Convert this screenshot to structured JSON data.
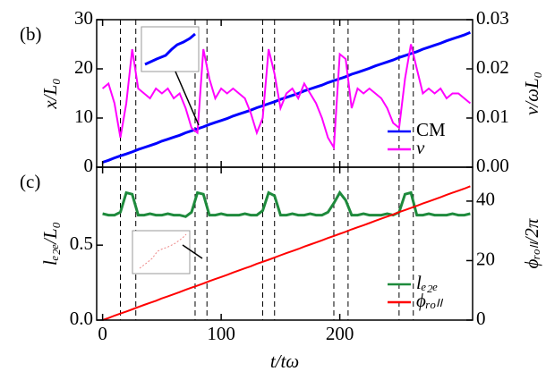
{
  "chart_data": [
    {
      "type": "line",
      "panel_label": "(b)",
      "x": [
        0,
        5,
        10,
        15,
        20,
        25,
        30,
        35,
        40,
        45,
        50,
        55,
        60,
        65,
        70,
        75,
        80,
        85,
        90,
        95,
        100,
        105,
        110,
        115,
        120,
        125,
        130,
        135,
        140,
        145,
        150,
        155,
        160,
        165,
        170,
        175,
        180,
        185,
        190,
        195,
        200,
        205,
        210,
        215,
        220,
        225,
        230,
        235,
        240,
        245,
        250,
        255,
        260,
        265,
        270,
        275,
        280,
        285,
        290,
        295,
        300,
        305,
        310
      ],
      "xlim": [
        -5,
        312
      ],
      "xticks": [
        0,
        100,
        200
      ],
      "ylim": [
        0,
        30
      ],
      "yticks": [
        0,
        10,
        20,
        30
      ],
      "ylabel": "x/L₀",
      "y2lim": [
        0,
        0.03
      ],
      "y2ticks": [
        {
          "value": 0,
          "label": "0.00"
        },
        {
          "value": 0.01,
          "label": "0.01"
        },
        {
          "value": 0.02,
          "label": "0.02"
        },
        {
          "value": 0.03,
          "label": "0.03"
        }
      ],
      "y2label": "v/ωL₀",
      "legend": "lower right",
      "vlines": [
        15,
        28,
        78,
        88,
        135,
        145,
        195,
        207,
        250,
        262
      ],
      "series": [
        {
          "name": "CM",
          "color": "#0000ff",
          "values": [
            1.0,
            1.4,
            1.9,
            2.3,
            2.7,
            3.1,
            3.6,
            4.0,
            4.4,
            4.8,
            5.3,
            5.7,
            6.1,
            6.5,
            7.0,
            7.4,
            7.8,
            8.2,
            8.7,
            9.1,
            9.5,
            9.9,
            10.4,
            10.8,
            11.2,
            11.6,
            12.1,
            12.5,
            12.9,
            13.3,
            13.8,
            14.2,
            14.6,
            15.0,
            15.5,
            15.9,
            16.3,
            16.7,
            17.2,
            17.6,
            18.0,
            18.4,
            18.9,
            19.3,
            19.7,
            20.1,
            20.6,
            21.0,
            21.4,
            21.8,
            22.3,
            22.7,
            23.1,
            23.5,
            24.0,
            24.4,
            24.8,
            25.2,
            25.7,
            26.1,
            26.5,
            26.9,
            27.4
          ]
        },
        {
          "name": "v",
          "color": "#ff00ff",
          "axis": "y2",
          "values": [
            0.016,
            0.017,
            0.013,
            0.006,
            0.013,
            0.024,
            0.016,
            0.015,
            0.014,
            0.016,
            0.015,
            0.016,
            0.014,
            0.015,
            0.012,
            0.008,
            0.007,
            0.024,
            0.018,
            0.014,
            0.016,
            0.015,
            0.016,
            0.015,
            0.014,
            0.011,
            0.007,
            0.01,
            0.024,
            0.019,
            0.012,
            0.015,
            0.016,
            0.014,
            0.017,
            0.015,
            0.013,
            0.01,
            0.006,
            0.004,
            0.023,
            0.022,
            0.012,
            0.016,
            0.015,
            0.016,
            0.015,
            0.014,
            0.012,
            0.009,
            0.008,
            0.018,
            0.025,
            0.02,
            0.015,
            0.016,
            0.015,
            0.016,
            0.014,
            0.015,
            0.015,
            0.014,
            0.013
          ]
        }
      ]
    },
    {
      "type": "line",
      "panel_label": "(c)",
      "x": [
        0,
        5,
        10,
        15,
        20,
        25,
        30,
        35,
        40,
        45,
        50,
        55,
        60,
        65,
        70,
        75,
        80,
        85,
        90,
        95,
        100,
        105,
        110,
        115,
        120,
        125,
        130,
        135,
        140,
        145,
        150,
        155,
        160,
        165,
        170,
        175,
        180,
        185,
        190,
        195,
        200,
        205,
        210,
        215,
        220,
        225,
        230,
        235,
        240,
        245,
        250,
        255,
        260,
        265,
        270,
        275,
        280,
        285,
        290,
        295,
        300,
        305,
        310
      ],
      "xlim": [
        -5,
        312
      ],
      "xticks": [
        0,
        100,
        200
      ],
      "xlabel": "t/tω",
      "ylim": [
        0,
        1.02
      ],
      "yticks": [
        {
          "value": 0,
          "label": "0.0"
        },
        0.5
      ],
      "ylabel": "lₑ₂ₑ/L₀",
      "y2lim": [
        0,
        51.4
      ],
      "y2ticks": [
        0,
        20,
        40
      ],
      "y2label": "ϕᵣₒₗₗ/2π",
      "legend": "lower right",
      "vlines": [
        15,
        28,
        78,
        88,
        135,
        145,
        195,
        207,
        250,
        262
      ],
      "series": [
        {
          "name": "lₑ₂ₑ",
          "color": "#1e8a3c",
          "values": [
            0.71,
            0.7,
            0.7,
            0.72,
            0.85,
            0.84,
            0.7,
            0.7,
            0.71,
            0.7,
            0.7,
            0.71,
            0.7,
            0.7,
            0.69,
            0.72,
            0.85,
            0.84,
            0.7,
            0.7,
            0.71,
            0.7,
            0.7,
            0.7,
            0.71,
            0.7,
            0.7,
            0.73,
            0.85,
            0.83,
            0.7,
            0.7,
            0.71,
            0.7,
            0.7,
            0.71,
            0.7,
            0.7,
            0.72,
            0.78,
            0.85,
            0.8,
            0.7,
            0.7,
            0.71,
            0.7,
            0.7,
            0.7,
            0.71,
            0.7,
            0.72,
            0.84,
            0.85,
            0.7,
            0.7,
            0.71,
            0.7,
            0.7,
            0.7,
            0.71,
            0.7,
            0.7,
            0.71
          ]
        },
        {
          "name": "ϕᵣₒₗₗ",
          "color": "#ff0000",
          "axis": "y2",
          "values": [
            0,
            0.7,
            1.5,
            2.2,
            2.9,
            3.6,
            4.4,
            5.1,
            5.8,
            6.5,
            7.3,
            8.0,
            8.7,
            9.4,
            10.2,
            10.9,
            11.6,
            12.3,
            13.1,
            13.8,
            14.5,
            15.2,
            16.0,
            16.7,
            17.4,
            18.1,
            18.9,
            19.6,
            20.3,
            21.0,
            21.8,
            22.5,
            23.2,
            23.9,
            24.7,
            25.4,
            26.1,
            26.8,
            27.6,
            28.3,
            29.0,
            29.7,
            30.5,
            31.2,
            31.9,
            32.6,
            33.4,
            34.1,
            34.8,
            35.5,
            36.3,
            37.0,
            37.7,
            38.4,
            39.2,
            39.9,
            40.6,
            41.3,
            42.1,
            42.8,
            43.5,
            44.2,
            45.0
          ]
        }
      ]
    }
  ]
}
